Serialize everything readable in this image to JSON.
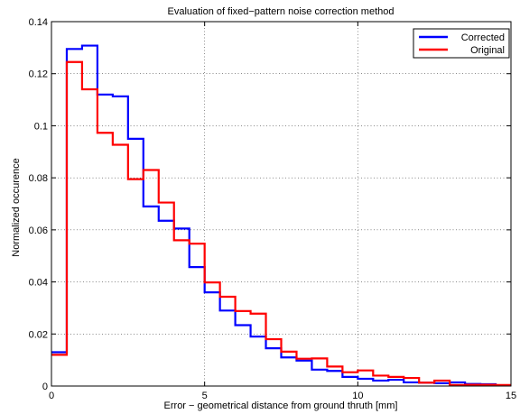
{
  "chart_data": {
    "type": "line",
    "subtype": "step-histogram",
    "title": "Evaluation of fixed−pattern noise correction method",
    "xlabel": "Error − geometrical distance from ground thruth [mm]",
    "ylabel": "Normalized occurence",
    "xlim": [
      0,
      15
    ],
    "ylim": [
      0,
      0.14
    ],
    "xticks": [
      0,
      5,
      10,
      15
    ],
    "xtick_labels": [
      "0",
      "5",
      "10",
      "15"
    ],
    "yticks": [
      0,
      0.02,
      0.04,
      0.06,
      0.08,
      0.1,
      0.12,
      0.14
    ],
    "ytick_labels": [
      "0",
      "0.02",
      "0.04",
      "0.06",
      "0.08",
      "0.1",
      "0.12",
      "0.14"
    ],
    "grid": true,
    "legend_position": "top-right",
    "bin_edges": [
      0,
      0.5,
      1,
      1.5,
      2,
      2.5,
      3,
      3.5,
      4,
      4.5,
      5,
      5.5,
      6,
      6.5,
      7,
      7.5,
      8,
      8.5,
      9,
      9.5,
      10,
      10.5,
      11,
      11.5,
      12,
      12.5,
      13,
      13.5,
      14,
      14.5,
      15
    ],
    "series": [
      {
        "name": "Corrected",
        "color": "#0000ff",
        "values": [
          0.013,
          0.1295,
          0.1308,
          0.112,
          0.1113,
          0.095,
          0.069,
          0.0635,
          0.0605,
          0.0457,
          0.036,
          0.029,
          0.0234,
          0.019,
          0.0145,
          0.011,
          0.0098,
          0.0063,
          0.0058,
          0.0035,
          0.0028,
          0.0021,
          0.0024,
          0.0014,
          0.0013,
          0.0011,
          0.0014,
          0.0008,
          0.0007,
          0.0003
        ]
      },
      {
        "name": "Original",
        "color": "#ff0000",
        "values": [
          0.012,
          0.1245,
          0.114,
          0.0973,
          0.0927,
          0.0795,
          0.083,
          0.0705,
          0.056,
          0.0547,
          0.0398,
          0.0343,
          0.0288,
          0.0278,
          0.018,
          0.0132,
          0.0105,
          0.0106,
          0.0075,
          0.0053,
          0.006,
          0.004,
          0.0035,
          0.0031,
          0.0013,
          0.0021,
          0.0004,
          0.0005,
          0.0005,
          0.0004
        ]
      }
    ]
  }
}
